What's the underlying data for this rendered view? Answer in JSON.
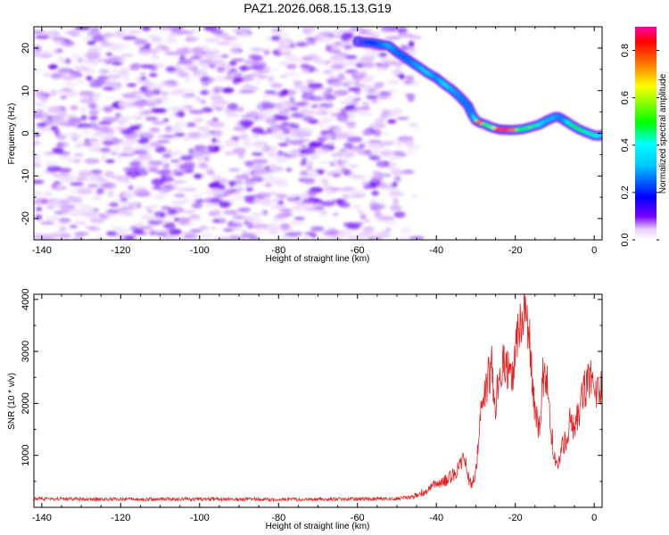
{
  "title": "PAZ1.2026.068.15.13.G19",
  "chart_data": [
    {
      "type": "heatmap",
      "title": "PAZ1.2026.068.15.13.G19",
      "xlabel": "Height of straight line (km)",
      "ylabel": "Frequency (Hz)",
      "xlim": [
        -142,
        2
      ],
      "ylim": [
        -25,
        25
      ],
      "xticks": [
        -140,
        -120,
        -100,
        -80,
        -60,
        -40,
        -20,
        0
      ],
      "yticks": [
        -20,
        -10,
        0,
        10,
        20
      ],
      "colorbar": {
        "label": "Normalized spectral amplitude",
        "range": [
          0,
          0.9
        ],
        "ticks": [
          "0.0",
          "0.2",
          "0.4",
          "0.6",
          "0.8"
        ],
        "colormap": [
          "#ffffff",
          "#7700ff",
          "#0000ff",
          "#00ffff",
          "#00ff00",
          "#ffff00",
          "#ff0000",
          "#ff00aa"
        ]
      },
      "noise_region": {
        "x_range": [
          -142,
          -45
        ],
        "y_range": [
          -25,
          25
        ],
        "amplitude_range": [
          0.02,
          0.12
        ]
      },
      "signal_trace": {
        "x": [
          -60,
          -56,
          -52,
          -50,
          -48,
          -46,
          -44,
          -42,
          -40,
          -38,
          -36,
          -34,
          -32,
          -31,
          -30,
          -29,
          -28,
          -26,
          -24,
          -22,
          -20,
          -18,
          -16,
          -14,
          -12,
          -10,
          -9,
          -8,
          -6,
          -4,
          -2,
          0,
          1,
          2
        ],
        "frequency": [
          21.5,
          21.2,
          20.5,
          19.0,
          17.8,
          16.5,
          15.3,
          14.0,
          13.0,
          11.5,
          10.2,
          8.5,
          6.5,
          4.5,
          3.0,
          2.5,
          2.2,
          1.4,
          0.9,
          0.8,
          0.8,
          1.0,
          1.5,
          2.0,
          3.0,
          3.8,
          3.8,
          3.3,
          2.1,
          1.0,
          0.2,
          -0.5,
          -0.6,
          -0.4
        ],
        "amplitude": [
          0.08,
          0.2,
          0.35,
          0.28,
          0.25,
          0.3,
          0.35,
          0.38,
          0.3,
          0.4,
          0.35,
          0.3,
          0.28,
          0.3,
          0.45,
          0.75,
          0.5,
          0.55,
          0.75,
          0.8,
          0.6,
          0.45,
          0.55,
          0.4,
          0.35,
          0.35,
          0.3,
          0.3,
          0.45,
          0.5,
          0.42,
          0.45,
          0.4,
          0.38
        ]
      }
    },
    {
      "type": "line",
      "xlabel": "Height of straight line (km)",
      "ylabel": "SNR (10 * v/v)",
      "xlim": [
        -142,
        2
      ],
      "ylim": [
        0,
        4100
      ],
      "xticks": [
        -140,
        -120,
        -100,
        -80,
        -60,
        -40,
        -20,
        0
      ],
      "yticks": [
        1000,
        2000,
        3000,
        4000
      ],
      "series": [
        {
          "name": "SNR",
          "color": "#e82020",
          "x": [
            -142,
            -120,
            -100,
            -80,
            -60,
            -50,
            -46,
            -44,
            -42,
            -40,
            -38,
            -36,
            -34,
            -33,
            -32,
            -31,
            -30,
            -29,
            -28,
            -27,
            -26,
            -25,
            -24,
            -23,
            -22,
            -21,
            -20,
            -19,
            -18,
            -17.5,
            -17,
            -16,
            -15,
            -14,
            -13,
            -12,
            -11,
            -10,
            -9,
            -8,
            -7,
            -6,
            -5,
            -4,
            -3,
            -2,
            -1,
            0,
            1,
            2
          ],
          "values": [
            160,
            155,
            160,
            150,
            160,
            170,
            200,
            270,
            350,
            450,
            500,
            600,
            800,
            1000,
            600,
            400,
            700,
            1600,
            2300,
            2400,
            2800,
            1800,
            2700,
            2900,
            2700,
            2500,
            3000,
            3300,
            3600,
            4050,
            3700,
            2800,
            1800,
            1500,
            2500,
            2600,
            1500,
            1000,
            800,
            1200,
            1300,
            1700,
            1500,
            1800,
            2200,
            2300,
            2600,
            2400,
            2200,
            2350
          ]
        }
      ]
    }
  ]
}
